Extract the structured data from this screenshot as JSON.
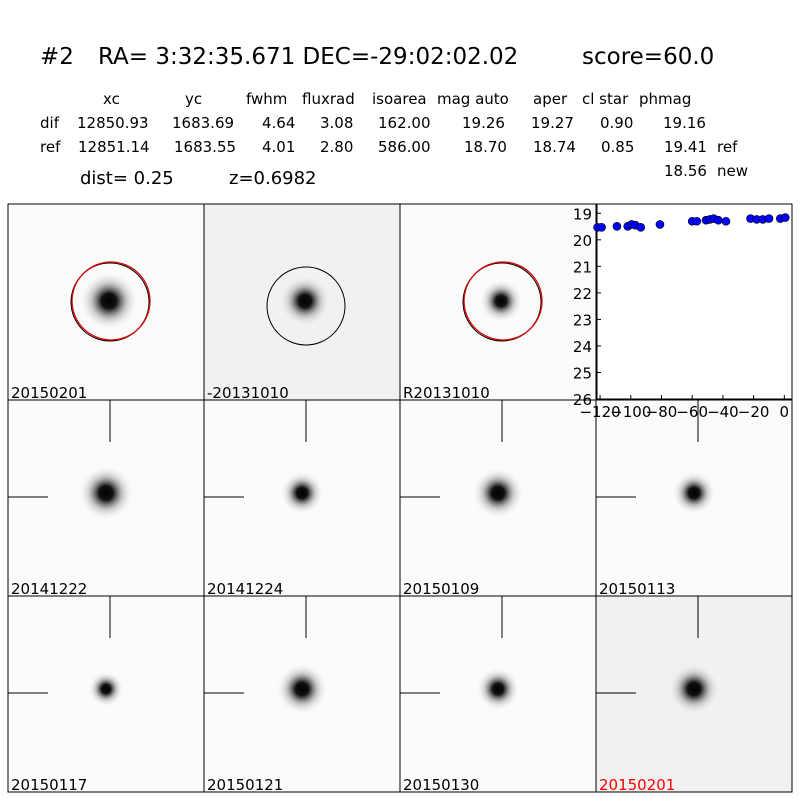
{
  "header": {
    "id": "#2",
    "coords": "RA= 3:32:35.671 DEC=-29:02:02.02",
    "score": "score=60.0"
  },
  "table": {
    "columns": [
      "xc",
      "yc",
      "fwhm",
      "fluxrad",
      "isoarea",
      "mag auto",
      "aper",
      "cl star",
      "phmag"
    ],
    "rows": [
      {
        "label": "dif",
        "values": [
          "12850.93",
          "1683.69",
          "4.64",
          "3.08",
          "162.00",
          "19.26",
          "19.27",
          "0.90",
          "19.16"
        ]
      },
      {
        "label": "ref",
        "values": [
          "12851.14",
          "1683.55",
          "4.01",
          "2.80",
          "586.00",
          "18.70",
          "18.74",
          "0.85",
          "19.41"
        ],
        "note": "ref"
      }
    ],
    "extra": {
      "value": "18.56",
      "note": "new"
    }
  },
  "dist": "dist=  0.25",
  "z": "z=0.6982",
  "panels": [
    "20150201",
    "-20131010",
    "R20131010",
    "20141222",
    "20141224",
    "20150109",
    "20150113",
    "20150117",
    "20150121",
    "20150130",
    "20150201"
  ],
  "chart_data": {
    "type": "scatter",
    "color": "#0000ff",
    "x": [
      -121.6,
      -119,
      -109,
      -102,
      -99.5,
      -97,
      -93.5,
      -81,
      -60,
      -57,
      -51,
      -48.5,
      -46,
      -43,
      -38,
      -22,
      -18,
      -14,
      -10,
      -2.6,
      0.6
    ],
    "values": [
      19.53,
      19.53,
      19.49,
      19.49,
      19.42,
      19.45,
      19.53,
      19.42,
      19.3,
      19.3,
      19.26,
      19.23,
      19.2,
      19.26,
      19.3,
      19.2,
      19.23,
      19.23,
      19.2,
      19.2,
      19.16
    ],
    "xlim": [
      -122,
      5
    ],
    "ylim": [
      26,
      18.65
    ],
    "xticks": [
      {
        "value": -120,
        "label": "−120"
      },
      {
        "value": -100,
        "label": "−100"
      },
      {
        "value": -80,
        "label": "−80"
      },
      {
        "value": -60,
        "label": "−60"
      },
      {
        "value": -40,
        "label": "−40"
      },
      {
        "value": -20,
        "label": "−20"
      },
      0
    ],
    "yticks": [
      19,
      20,
      21,
      22,
      23,
      24,
      25,
      26
    ]
  }
}
